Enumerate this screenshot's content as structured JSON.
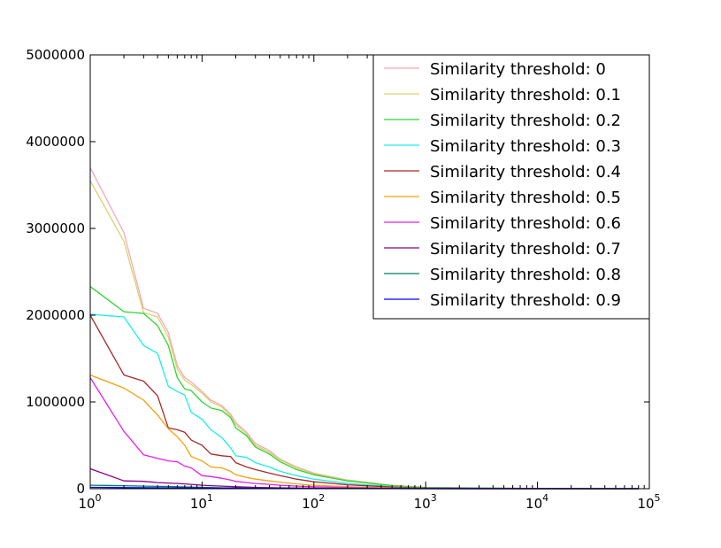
{
  "chart_data": {
    "type": "line",
    "title": "",
    "xlabel": "",
    "ylabel": "",
    "xscale": "log",
    "xlim": [
      1,
      100000
    ],
    "ylim": [
      0,
      5000000
    ],
    "grid": false,
    "legend_position": "top-right",
    "xticks": [
      {
        "value": 1,
        "base": "10",
        "exp": "0"
      },
      {
        "value": 10,
        "base": "10",
        "exp": "1"
      },
      {
        "value": 100,
        "base": "10",
        "exp": "2"
      },
      {
        "value": 1000,
        "base": "10",
        "exp": "3"
      },
      {
        "value": 10000,
        "base": "10",
        "exp": "4"
      },
      {
        "value": 100000,
        "base": "10",
        "exp": "5"
      }
    ],
    "yticks": [
      {
        "value": 0,
        "label": "0"
      },
      {
        "value": 1000000,
        "label": "1000000"
      },
      {
        "value": 2000000,
        "label": "2000000"
      },
      {
        "value": 3000000,
        "label": "3000000"
      },
      {
        "value": 4000000,
        "label": "4000000"
      },
      {
        "value": 5000000,
        "label": "5000000"
      }
    ],
    "series": [
      {
        "name": "Similarity threshold: 0",
        "color": "#f4a9b8",
        "x": [
          1,
          2,
          3,
          4,
          5,
          6,
          7,
          8,
          10,
          12,
          15,
          18,
          20,
          25,
          30,
          40,
          50,
          70,
          100,
          200,
          500,
          1000,
          10000,
          80000
        ],
        "y": [
          3700000,
          2950000,
          2080000,
          2020000,
          1800000,
          1420000,
          1280000,
          1230000,
          1120000,
          1020000,
          960000,
          860000,
          760000,
          650000,
          520000,
          440000,
          340000,
          250000,
          180000,
          100000,
          40000,
          15000,
          2000,
          0
        ]
      },
      {
        "name": "Similarity threshold: 0.1",
        "color": "#d9d26e",
        "x": [
          1,
          2,
          3,
          4,
          5,
          6,
          7,
          8,
          10,
          12,
          15,
          18,
          20,
          25,
          30,
          40,
          50,
          70,
          100,
          200,
          500,
          1000,
          10000,
          80000
        ],
        "y": [
          3550000,
          2850000,
          2030000,
          1980000,
          1750000,
          1380000,
          1250000,
          1200000,
          1100000,
          1000000,
          940000,
          840000,
          740000,
          630000,
          500000,
          420000,
          330000,
          240000,
          170000,
          95000,
          38000,
          14000,
          2000,
          0
        ]
      },
      {
        "name": "Similarity threshold: 0.2",
        "color": "#2fd62f",
        "x": [
          1,
          2,
          3,
          4,
          5,
          6,
          7,
          8,
          10,
          12,
          15,
          18,
          20,
          25,
          30,
          40,
          50,
          70,
          100,
          200,
          500,
          1000,
          10000,
          80000
        ],
        "y": [
          2330000,
          2040000,
          2020000,
          1880000,
          1650000,
          1280000,
          1150000,
          1130000,
          1000000,
          930000,
          900000,
          820000,
          700000,
          610000,
          480000,
          400000,
          310000,
          220000,
          160000,
          90000,
          35000,
          12000,
          2000,
          0
        ]
      },
      {
        "name": "Similarity threshold: 0.3",
        "color": "#19efea",
        "x": [
          1,
          2,
          3,
          4,
          5,
          6,
          7,
          8,
          10,
          12,
          15,
          18,
          20,
          25,
          30,
          40,
          50,
          70,
          100,
          200,
          500,
          1000,
          10000,
          80000
        ],
        "y": [
          2010000,
          1980000,
          1650000,
          1560000,
          1180000,
          1120000,
          1080000,
          880000,
          800000,
          680000,
          590000,
          470000,
          380000,
          360000,
          300000,
          250000,
          200000,
          150000,
          110000,
          60000,
          25000,
          9000,
          1500,
          0
        ]
      },
      {
        "name": "Similarity threshold: 0.4",
        "color": "#a52a2a",
        "x": [
          1,
          2,
          3,
          4,
          5,
          6,
          7,
          8,
          10,
          12,
          15,
          18,
          20,
          25,
          30,
          40,
          50,
          70,
          100,
          200,
          500,
          1000,
          10000,
          80000
        ],
        "y": [
          2000000,
          1310000,
          1240000,
          1070000,
          700000,
          680000,
          650000,
          560000,
          500000,
          400000,
          380000,
          370000,
          300000,
          250000,
          220000,
          180000,
          150000,
          110000,
          80000,
          45000,
          18000,
          7000,
          1000,
          0
        ]
      },
      {
        "name": "Similarity threshold: 0.5",
        "color": "#f0a30a",
        "x": [
          1,
          2,
          3,
          4,
          5,
          6,
          7,
          8,
          10,
          12,
          15,
          18,
          20,
          25,
          30,
          40,
          50,
          70,
          100,
          200,
          500,
          1000,
          10000,
          80000
        ],
        "y": [
          1310000,
          1160000,
          1020000,
          850000,
          690000,
          600000,
          500000,
          370000,
          320000,
          250000,
          240000,
          200000,
          160000,
          130000,
          110000,
          90000,
          75000,
          55000,
          40000,
          22000,
          9000,
          3500,
          500,
          0
        ]
      },
      {
        "name": "Similarity threshold: 0.6",
        "color": "#e81ee8",
        "x": [
          1,
          2,
          3,
          4,
          5,
          6,
          7,
          8,
          10,
          12,
          15,
          18,
          20,
          25,
          30,
          40,
          50,
          70,
          100,
          200,
          500,
          1000,
          10000,
          80000
        ],
        "y": [
          1280000,
          660000,
          390000,
          350000,
          320000,
          310000,
          260000,
          240000,
          150000,
          140000,
          120000,
          100000,
          85000,
          70000,
          60000,
          50000,
          40000,
          30000,
          22000,
          12000,
          5000,
          2000,
          300,
          0
        ]
      },
      {
        "name": "Similarity threshold: 0.7",
        "color": "#8b008b",
        "x": [
          1,
          2,
          3,
          4,
          5,
          6,
          7,
          8,
          10,
          12,
          15,
          18,
          20,
          30,
          50,
          100,
          200,
          500,
          1000,
          10000,
          80000
        ],
        "y": [
          230000,
          90000,
          85000,
          70000,
          65000,
          60000,
          55000,
          50000,
          40000,
          35000,
          30000,
          25000,
          22000,
          15000,
          10000,
          6000,
          3000,
          1200,
          500,
          100,
          0
        ]
      },
      {
        "name": "Similarity threshold: 0.8",
        "color": "#007f5f",
        "x": [
          1,
          2,
          3,
          5,
          7,
          10,
          15,
          20,
          30,
          50,
          100,
          200,
          1000,
          10000,
          80000
        ],
        "y": [
          40000,
          35000,
          30000,
          25000,
          20000,
          15000,
          10000,
          8000,
          6000,
          4000,
          2500,
          1500,
          500,
          100,
          0
        ]
      },
      {
        "name": "Similarity threshold: 0.9",
        "color": "#0000ff",
        "x": [
          1,
          2,
          5,
          10,
          20,
          50,
          100,
          1000,
          10000,
          80000
        ],
        "y": [
          15000,
          12000,
          10000,
          8000,
          6000,
          4000,
          2500,
          800,
          100,
          0
        ]
      }
    ]
  }
}
